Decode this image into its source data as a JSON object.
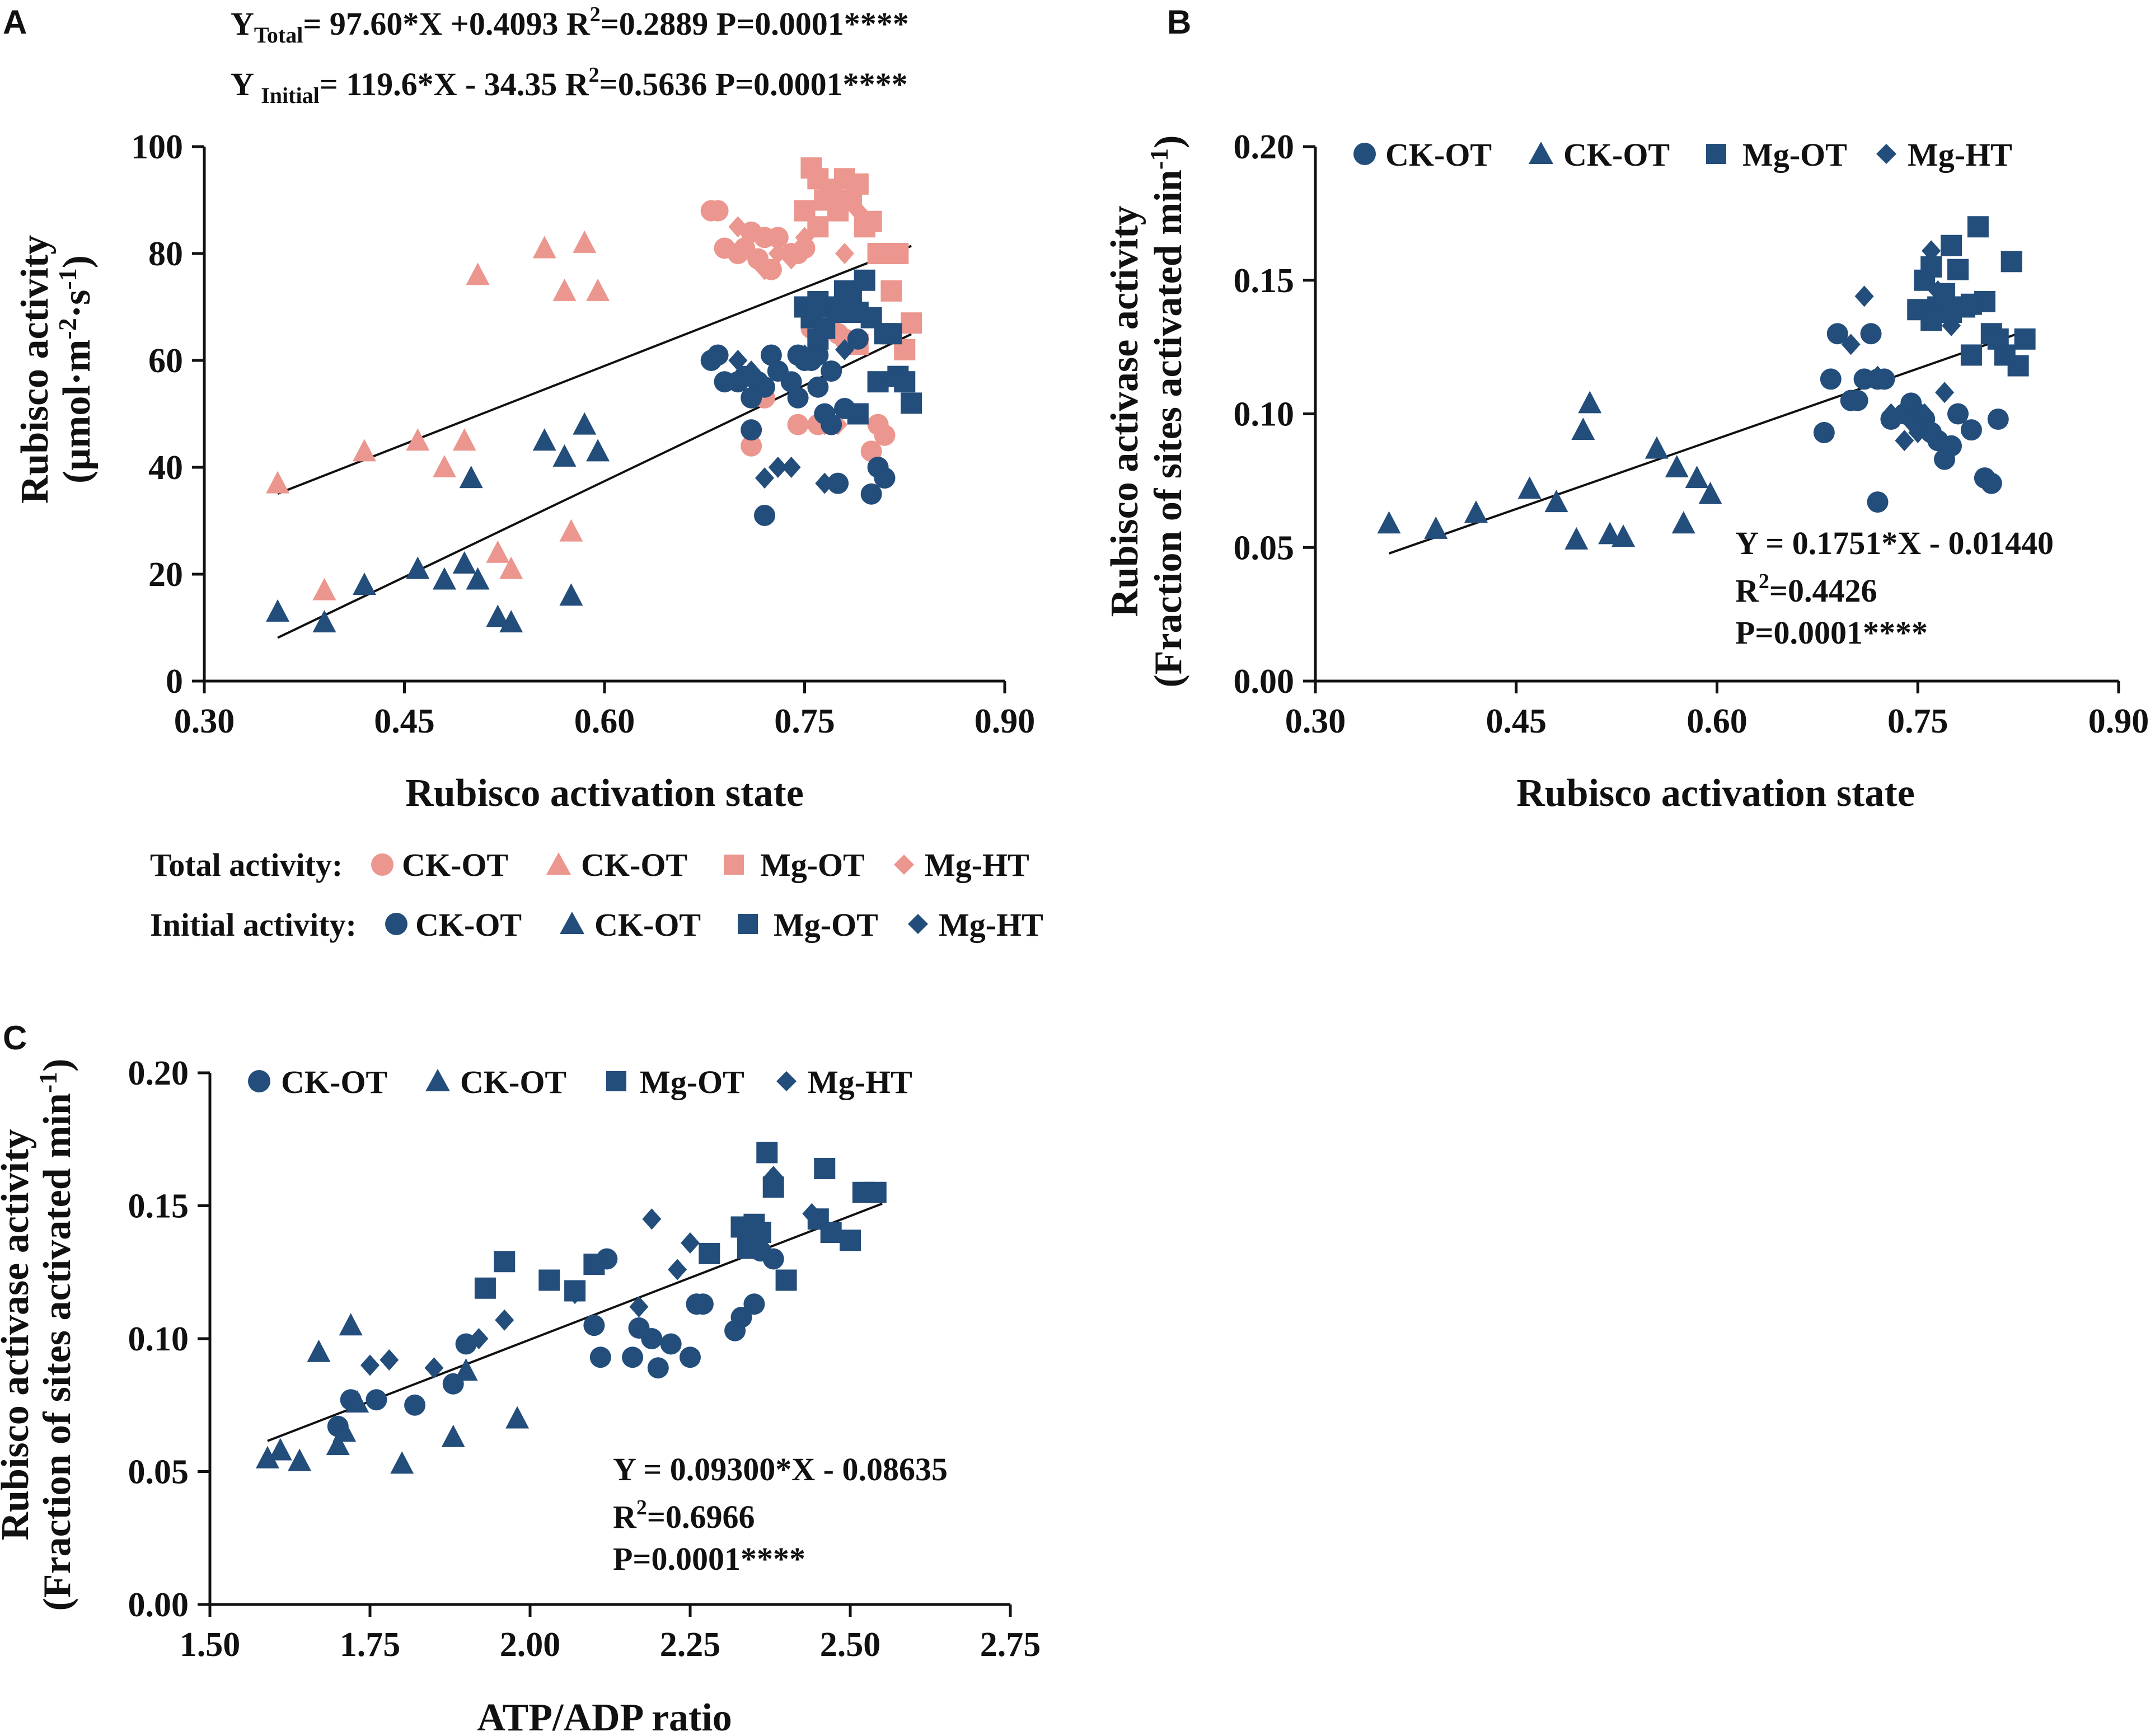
{
  "colors": {
    "total": "#EB968E",
    "initial": "#234D7B",
    "axis": "#111111"
  },
  "panel_a": {
    "letter": "A",
    "eq_total": {
      "y": "Y",
      "sub": "Total",
      "body": "= 97.60*X +0.4093 R",
      "sup": "2",
      "tail": "=0.2889   P=0.0001****"
    },
    "eq_initial": {
      "y": "Y ",
      "sub": "Initial",
      "body": "= 119.6*X - 34.35   R",
      "sup": "2",
      "tail": "=0.5636   P=0.0001****"
    },
    "ylabel_line1": "Rubisco activity",
    "ylabel_line2_pre": "(μmol·m",
    "ylabel_line2_sup1": "-2",
    "ylabel_line2_mid": "·s",
    "ylabel_line2_sup2": "-1",
    "ylabel_line2_post": ")",
    "xlabel": "Rubisco activation state",
    "legend_total_title": "Total activity:",
    "legend_initial_title": "Initial activity:",
    "legend_labels": [
      "CK-OT",
      "CK-OT",
      "Mg-OT",
      "Mg-HT"
    ]
  },
  "panel_b": {
    "letter": "B",
    "ylabel_line1": "Rubisco activase activity",
    "ylabel_line2_pre": "(Fraction of sites activated min",
    "ylabel_line2_sup": "-1",
    "ylabel_line2_post": ")",
    "xlabel": "Rubisco activation state",
    "legend_labels": [
      "CK-OT",
      "CK-OT",
      "Mg-OT",
      "Mg-HT"
    ],
    "eq_line": "Y = 0.1751*X - 0.01440",
    "r2_pre": "R",
    "r2_sup": "2",
    "r2_post": "=0.4426",
    "p_line": "P=0.0001****"
  },
  "panel_c": {
    "letter": "C",
    "ylabel_line1": "Rubisco activase activity",
    "ylabel_line2_pre": "(Fraction of sites activated min",
    "ylabel_line2_sup": "-1",
    "ylabel_line2_post": ")",
    "xlabel": "ATP/ADP ratio",
    "legend_labels": [
      "CK-OT",
      "CK-OT",
      "Mg-OT",
      "Mg-HT"
    ],
    "eq_line": "Y = 0.09300*X - 0.08635",
    "r2_pre": "R",
    "r2_sup": "2",
    "r2_post": "=0.6966",
    "p_line": "P=0.0001****"
  },
  "chart_data": [
    {
      "panel": "A",
      "type": "scatter",
      "xlabel": "Rubisco activation state",
      "ylabel": "Rubisco activity (μmol·m-2·s-1)",
      "xlim": [
        0.3,
        0.9
      ],
      "ylim": [
        0,
        100
      ],
      "xticks": [
        "0.30",
        "0.45",
        "0.60",
        "0.75",
        "0.90"
      ],
      "yticks": [
        "0",
        "20",
        "40",
        "60",
        "80",
        "100"
      ],
      "fits": [
        {
          "name": "Total",
          "slope": 97.6,
          "intercept": 0.4093,
          "x_range": [
            0.355,
            0.83
          ],
          "color": "#111111"
        },
        {
          "name": "Initial",
          "slope": 119.6,
          "intercept": -34.35,
          "x_range": [
            0.355,
            0.83
          ],
          "color": "#111111"
        }
      ],
      "series": [
        {
          "name": "Total activity: CK-OT",
          "marker": "circle",
          "color": "#EB968E",
          "x": [
            0.68,
            0.685,
            0.69,
            0.7,
            0.705,
            0.71,
            0.715,
            0.72,
            0.725,
            0.73,
            0.74,
            0.745,
            0.75,
            0.755,
            0.76,
            0.765,
            0.77,
            0.775,
            0.78,
            0.79,
            0.8,
            0.805,
            0.81,
            0.72,
            0.71,
            0.745,
            0.76,
            0.77
          ],
          "y": [
            88,
            88,
            81,
            80,
            81,
            84,
            79,
            83,
            77,
            83,
            80,
            80,
            81,
            66,
            68,
            68,
            70,
            65,
            64,
            64,
            43,
            48,
            46,
            53,
            44,
            48,
            48,
            66
          ]
        },
        {
          "name": "Total activity: CK-OT",
          "marker": "triangle",
          "color": "#EB968E",
          "x": [
            0.355,
            0.39,
            0.42,
            0.46,
            0.48,
            0.495,
            0.5,
            0.505,
            0.52,
            0.53,
            0.555,
            0.57,
            0.575,
            0.585,
            0.595
          ],
          "y": [
            37,
            17,
            43,
            45,
            40,
            45,
            38,
            76,
            24,
            21,
            81,
            73,
            28,
            82,
            73
          ]
        },
        {
          "name": "Total activity: Mg-OT",
          "marker": "square",
          "color": "#EB968E",
          "x": [
            0.75,
            0.755,
            0.76,
            0.765,
            0.77,
            0.775,
            0.78,
            0.785,
            0.79,
            0.795,
            0.8,
            0.805,
            0.81,
            0.815,
            0.82,
            0.825,
            0.83,
            0.76,
            0.775,
            0.79
          ],
          "y": [
            88,
            96,
            94,
            90,
            92,
            89,
            94,
            90,
            93,
            85,
            86,
            80,
            80,
            73,
            80,
            62,
            67,
            85,
            88,
            63
          ]
        },
        {
          "name": "Total activity: Mg-HT",
          "marker": "diamond",
          "color": "#EB968E",
          "x": [
            0.7,
            0.71,
            0.72,
            0.73,
            0.74,
            0.75,
            0.765,
            0.775,
            0.78,
            0.79
          ],
          "y": [
            85,
            84,
            77,
            80,
            79,
            83,
            48,
            48,
            80,
            88
          ]
        },
        {
          "name": "Initial activity: CK-OT",
          "marker": "circle",
          "color": "#234D7B",
          "x": [
            0.68,
            0.685,
            0.69,
            0.7,
            0.705,
            0.71,
            0.715,
            0.72,
            0.725,
            0.73,
            0.74,
            0.745,
            0.75,
            0.755,
            0.76,
            0.765,
            0.77,
            0.775,
            0.78,
            0.79,
            0.8,
            0.805,
            0.81,
            0.72,
            0.71,
            0.745,
            0.76,
            0.77
          ],
          "y": [
            60,
            61,
            56,
            56,
            57,
            53,
            56,
            55,
            61,
            58,
            56,
            61,
            60,
            60,
            55,
            50,
            48,
            37,
            51,
            64,
            35,
            40,
            38,
            31,
            47,
            53,
            61,
            58
          ]
        },
        {
          "name": "Initial activity: CK-OT",
          "marker": "triangle",
          "color": "#234D7B",
          "x": [
            0.355,
            0.39,
            0.42,
            0.46,
            0.48,
            0.495,
            0.5,
            0.505,
            0.52,
            0.53,
            0.555,
            0.57,
            0.575,
            0.585,
            0.595
          ],
          "y": [
            13,
            11,
            18,
            21,
            19,
            22,
            38,
            19,
            12,
            11,
            45,
            42,
            16,
            48,
            43
          ]
        },
        {
          "name": "Initial activity: Mg-OT",
          "marker": "square",
          "color": "#234D7B",
          "x": [
            0.75,
            0.755,
            0.76,
            0.765,
            0.77,
            0.775,
            0.78,
            0.785,
            0.79,
            0.795,
            0.8,
            0.805,
            0.81,
            0.815,
            0.82,
            0.825,
            0.83,
            0.76,
            0.775,
            0.79
          ],
          "y": [
            70,
            68,
            64,
            66,
            70,
            69,
            73,
            72,
            69,
            75,
            68,
            56,
            65,
            65,
            57,
            56,
            52,
            71,
            70,
            50
          ]
        },
        {
          "name": "Initial activity: Mg-HT",
          "marker": "diamond",
          "color": "#234D7B",
          "x": [
            0.7,
            0.71,
            0.72,
            0.73,
            0.74,
            0.75,
            0.765,
            0.775,
            0.78,
            0.79
          ],
          "y": [
            60,
            58,
            38,
            40,
            40,
            61,
            37,
            37,
            62,
            69
          ]
        }
      ]
    },
    {
      "panel": "B",
      "type": "scatter",
      "xlabel": "Rubisco activation state",
      "ylabel": "Rubisco activase activity (Fraction of sites activated min-1)",
      "xlim": [
        0.3,
        0.9
      ],
      "ylim": [
        0.0,
        0.2
      ],
      "xticks": [
        "0.30",
        "0.45",
        "0.60",
        "0.75",
        "0.90"
      ],
      "yticks": [
        "0.00",
        "0.05",
        "0.10",
        "0.15",
        "0.20"
      ],
      "fit": {
        "slope": 0.1751,
        "intercept": -0.0144,
        "r2": 0.4426,
        "x_range": [
          0.355,
          0.83
        ]
      },
      "series": [
        {
          "name": "CK-OT",
          "marker": "circle",
          "color": "#234D7B",
          "x": [
            0.68,
            0.685,
            0.69,
            0.7,
            0.705,
            0.71,
            0.715,
            0.72,
            0.725,
            0.73,
            0.74,
            0.745,
            0.75,
            0.755,
            0.76,
            0.765,
            0.77,
            0.775,
            0.78,
            0.79,
            0.8,
            0.805,
            0.81,
            0.72
          ],
          "y": [
            0.093,
            0.113,
            0.13,
            0.105,
            0.105,
            0.113,
            0.13,
            0.113,
            0.113,
            0.098,
            0.1,
            0.104,
            0.1,
            0.098,
            0.093,
            0.09,
            0.083,
            0.088,
            0.1,
            0.094,
            0.076,
            0.074,
            0.098,
            0.067
          ]
        },
        {
          "name": "CK-OT",
          "marker": "triangle",
          "color": "#234D7B",
          "x": [
            0.355,
            0.39,
            0.42,
            0.46,
            0.48,
            0.495,
            0.5,
            0.505,
            0.52,
            0.53,
            0.555,
            0.57,
            0.575,
            0.585,
            0.595
          ],
          "y": [
            0.059,
            0.057,
            0.063,
            0.072,
            0.067,
            0.053,
            0.094,
            0.104,
            0.055,
            0.054,
            0.087,
            0.08,
            0.059,
            0.076,
            0.07
          ]
        },
        {
          "name": "Mg-OT",
          "marker": "square",
          "color": "#234D7B",
          "x": [
            0.75,
            0.755,
            0.76,
            0.765,
            0.77,
            0.775,
            0.78,
            0.785,
            0.79,
            0.795,
            0.8,
            0.805,
            0.81,
            0.815,
            0.82,
            0.825,
            0.83,
            0.76,
            0.775,
            0.79
          ],
          "y": [
            0.139,
            0.15,
            0.155,
            0.14,
            0.145,
            0.163,
            0.154,
            0.14,
            0.122,
            0.17,
            0.142,
            0.13,
            0.128,
            0.122,
            0.157,
            0.118,
            0.128,
            0.135,
            0.138,
            0.141
          ]
        },
        {
          "name": "Mg-HT",
          "marker": "diamond",
          "color": "#234D7B",
          "x": [
            0.7,
            0.71,
            0.72,
            0.73,
            0.74,
            0.745,
            0.75,
            0.755,
            0.76,
            0.765,
            0.77,
            0.775,
            0.78
          ],
          "y": [
            0.126,
            0.144,
            0.114,
            0.1,
            0.09,
            0.097,
            0.093,
            0.1,
            0.161,
            0.146,
            0.108,
            0.133,
            0.139
          ]
        }
      ]
    },
    {
      "panel": "C",
      "type": "scatter",
      "xlabel": "ATP/ADP ratio",
      "ylabel": "Rubisco activase activity (Fraction of sites activated min-1)",
      "xlim": [
        1.5,
        2.75
      ],
      "ylim": [
        0.0,
        0.2
      ],
      "xticks": [
        "1.50",
        "1.75",
        "2.00",
        "2.25",
        "2.50",
        "2.75"
      ],
      "yticks": [
        "0.00",
        "0.05",
        "0.10",
        "0.15",
        "0.20"
      ],
      "fit": {
        "slope": 0.093,
        "intercept": -0.08635,
        "r2": 0.6966,
        "x_range": [
          1.59,
          2.55
        ]
      },
      "series": [
        {
          "name": "CK-OT",
          "marker": "circle",
          "color": "#234D7B",
          "x": [
            1.7,
            1.72,
            1.76,
            1.82,
            1.88,
            1.9,
            2.1,
            2.11,
            2.12,
            2.16,
            2.17,
            2.19,
            2.2,
            2.22,
            2.25,
            2.26,
            2.27,
            2.32,
            2.33,
            2.35,
            2.36,
            2.38
          ],
          "y": [
            0.067,
            0.077,
            0.077,
            0.075,
            0.083,
            0.098,
            0.105,
            0.093,
            0.13,
            0.093,
            0.104,
            0.1,
            0.089,
            0.098,
            0.093,
            0.113,
            0.113,
            0.103,
            0.108,
            0.113,
            0.133,
            0.13
          ]
        },
        {
          "name": "CK-OT",
          "marker": "triangle",
          "color": "#234D7B",
          "x": [
            1.59,
            1.61,
            1.64,
            1.67,
            1.7,
            1.72,
            1.73,
            1.8,
            1.88,
            1.9,
            1.98,
            1.71
          ],
          "y": [
            0.055,
            0.058,
            0.054,
            0.095,
            0.06,
            0.105,
            0.076,
            0.053,
            0.063,
            0.088,
            0.07,
            0.065
          ]
        },
        {
          "name": "Mg-OT",
          "marker": "square",
          "color": "#234D7B",
          "x": [
            1.93,
            1.96,
            2.03,
            2.07,
            2.1,
            2.28,
            2.34,
            2.35,
            2.36,
            2.37,
            2.4,
            2.45,
            2.46,
            2.47,
            2.5,
            2.52,
            2.54,
            2.33,
            2.38
          ],
          "y": [
            0.119,
            0.129,
            0.122,
            0.118,
            0.128,
            0.132,
            0.134,
            0.143,
            0.14,
            0.17,
            0.122,
            0.145,
            0.164,
            0.14,
            0.137,
            0.155,
            0.155,
            0.142,
            0.157
          ]
        },
        {
          "name": "Mg-HT",
          "marker": "diamond",
          "color": "#234D7B",
          "x": [
            1.75,
            1.78,
            1.85,
            1.92,
            1.96,
            2.07,
            2.17,
            2.19,
            2.23,
            2.25,
            2.38,
            2.44
          ],
          "y": [
            0.09,
            0.092,
            0.089,
            0.1,
            0.107,
            0.117,
            0.112,
            0.145,
            0.126,
            0.136,
            0.161,
            0.147
          ]
        }
      ]
    }
  ]
}
